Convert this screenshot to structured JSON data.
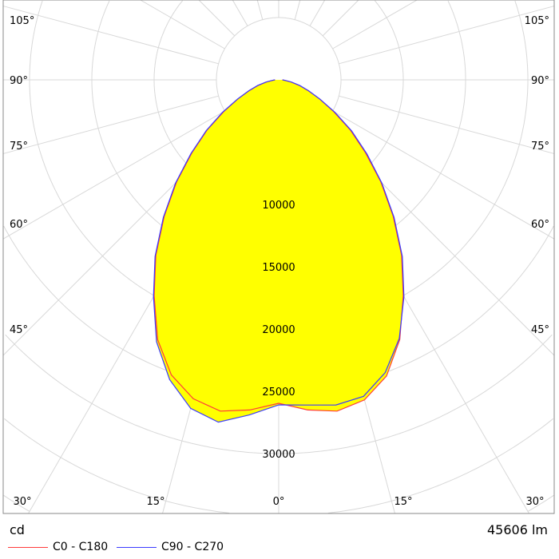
{
  "chart_data": {
    "type": "polar",
    "unit_label": "cd",
    "flux_label": "45606 lm",
    "radial_ticks": [
      10000,
      15000,
      20000,
      25000,
      30000
    ],
    "radial_step": 5000,
    "angle_labels": [
      "0°",
      "15°",
      "30°",
      "45°",
      "60°",
      "75°",
      "90°",
      "105°"
    ],
    "grid": true,
    "legend_placement": "bottom-left",
    "angles_deg": [
      -90,
      -85,
      -80,
      -75,
      -70,
      -65,
      -60,
      -55,
      -50,
      -45,
      -40,
      -35,
      -30,
      -25,
      -20,
      -15,
      -10,
      -5,
      0,
      5,
      10,
      15,
      20,
      25,
      30,
      35,
      40,
      45,
      50,
      55,
      60,
      65,
      70,
      75,
      80,
      85,
      90
    ],
    "series": [
      {
        "name": "C0 - C180",
        "color": "#ff3b3b",
        "values": [
          300,
          500,
          1000,
          1700,
          2500,
          3600,
          5100,
          7000,
          9100,
          11600,
          14300,
          17200,
          20000,
          23000,
          25200,
          26500,
          27000,
          26600,
          25960,
          26600,
          27000,
          26600,
          25300,
          23000,
          20000,
          17200,
          14300,
          11600,
          9100,
          7000,
          5100,
          3600,
          2500,
          1700,
          1000,
          500,
          300
        ]
      },
      {
        "name": "C90 - C270",
        "color": "#3b3bff",
        "values": [
          300,
          520,
          1050,
          1750,
          2550,
          3650,
          5200,
          7100,
          9200,
          11700,
          14400,
          17300,
          20100,
          23200,
          25600,
          27300,
          27900,
          27000,
          26090,
          26200,
          26500,
          26300,
          25000,
          22900,
          20100,
          17300,
          14400,
          11700,
          9250,
          7150,
          5200,
          3650,
          2550,
          1750,
          1050,
          520,
          300
        ]
      }
    ]
  }
}
